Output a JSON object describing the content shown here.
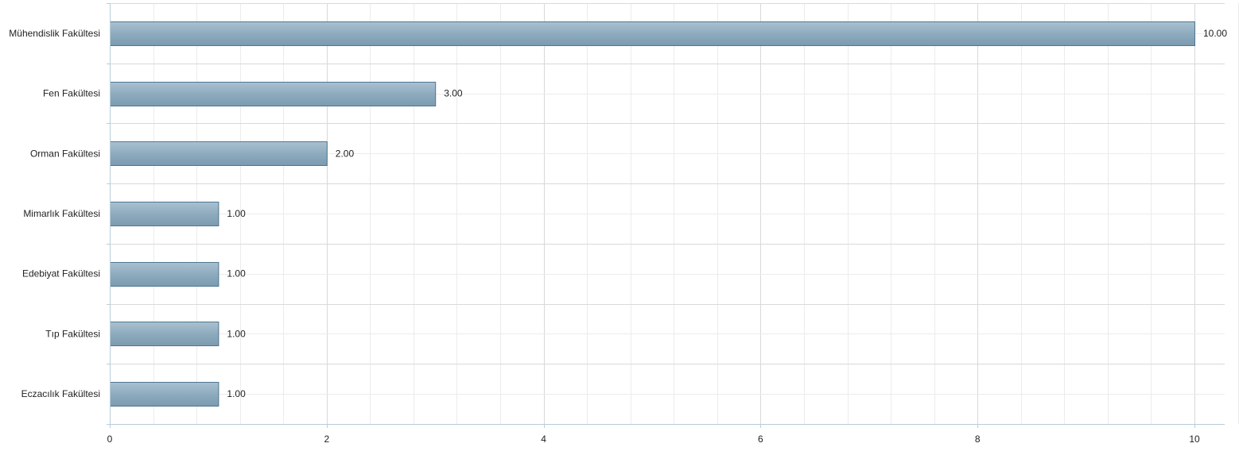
{
  "chart_data": {
    "type": "bar",
    "orientation": "horizontal",
    "title": "",
    "xlabel": "",
    "ylabel": "",
    "categories": [
      "Mühendislik Fakültesi",
      "Fen Fakültesi",
      "Orman Fakültesi",
      "Mimarlık Fakültesi",
      "Edebiyat Fakültesi",
      "Tıp Fakültesi",
      "Eczacılık Fakültesi"
    ],
    "values": [
      10,
      3,
      2,
      1,
      1,
      1,
      1
    ],
    "value_labels": [
      "10.00",
      "3.00",
      "2.00",
      "1.00",
      "1.00",
      "1.00",
      "1.00"
    ],
    "xlim": [
      0,
      10.4
    ],
    "xticks": [
      0,
      2,
      4,
      6,
      8,
      10
    ],
    "xtick_labels": [
      "0",
      "2",
      "4",
      "6",
      "8",
      "10"
    ],
    "minor_xticks": [
      0.4,
      0.8,
      1.2,
      1.6,
      2.4,
      2.8,
      3.2,
      3.6,
      4.4,
      4.8,
      5.2,
      5.6,
      6.4,
      6.8,
      7.2,
      7.6,
      8.4,
      8.8,
      9.2,
      9.6,
      10.4
    ],
    "grid": true,
    "legend": "none",
    "colors": {
      "bar_fill": "#8eabbe",
      "bar_stroke": "#4f7690",
      "grid_major": "#d9d9d9",
      "grid_minor": "#ececec",
      "axis": "#b9cdd9"
    }
  }
}
